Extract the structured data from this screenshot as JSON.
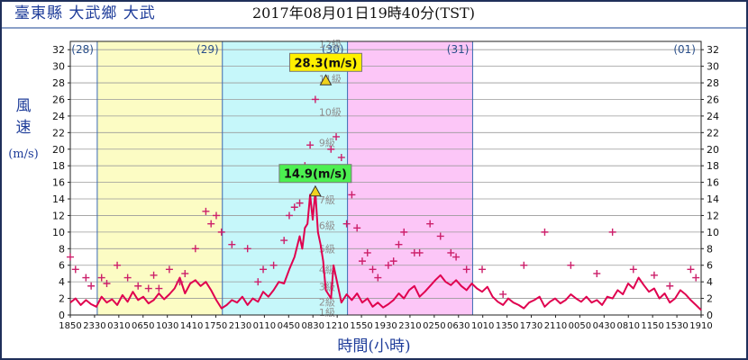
{
  "header": {
    "station": "臺東縣 大武鄉 大武",
    "datetime": "2017年08月01日19時40分(TST)"
  },
  "chart_data": {
    "type": "line",
    "ylabel_chars": [
      "風",
      "速"
    ],
    "ylabel_unit": "(m/s)",
    "xlabel": "時間(小時)",
    "ylim": [
      0,
      33
    ],
    "yticks": [
      0,
      2,
      4,
      6,
      8,
      10,
      12,
      14,
      16,
      18,
      20,
      22,
      24,
      26,
      28,
      30,
      32
    ],
    "x_hours": [
      0,
      121
    ],
    "xticks": [
      "1850",
      "2330",
      "0310",
      "0650",
      "1030",
      "1410",
      "1750",
      "2130",
      "0110",
      "0450",
      "0830",
      "1210",
      "1550",
      "1930",
      "2310",
      "0250",
      "0630",
      "1010",
      "1350",
      "1730",
      "2110",
      "0050",
      "0430",
      "0810",
      "1150",
      "1530",
      "1910"
    ],
    "days": [
      {
        "label": "(28)",
        "start": 0,
        "end": 5.17,
        "color": "#ffffff"
      },
      {
        "label": "(29)",
        "start": 5.17,
        "end": 29.17,
        "color": "#fcfcc4"
      },
      {
        "label": "(30)",
        "start": 29.17,
        "end": 53.17,
        "color": "#c6f7fa"
      },
      {
        "label": "(31)",
        "start": 53.17,
        "end": 77.17,
        "color": "#fcc6f7"
      },
      {
        "label": "(01)",
        "start": 77.17,
        "end": 121,
        "color": "#ffffff"
      }
    ],
    "beaufort": [
      {
        "label": "1級",
        "v": 0.3
      },
      {
        "label": "2級",
        "v": 1.6
      },
      {
        "label": "3級",
        "v": 3.4
      },
      {
        "label": "4級",
        "v": 5.5
      },
      {
        "label": "5級",
        "v": 8.0
      },
      {
        "label": "6級",
        "v": 10.8
      },
      {
        "label": "7級",
        "v": 13.9
      },
      {
        "label": "8級",
        "v": 17.2
      },
      {
        "label": "9級",
        "v": 20.8
      },
      {
        "label": "10級",
        "v": 24.5
      },
      {
        "label": "11級",
        "v": 28.5
      },
      {
        "label": "12級",
        "v": 32.7
      }
    ],
    "series": [
      {
        "role": "mean",
        "color": "#e0004f",
        "x": [
          0,
          1,
          2,
          3,
          4,
          5,
          6,
          7,
          8,
          9,
          10,
          11,
          12,
          13,
          14,
          15,
          16,
          17,
          18,
          19,
          20,
          21,
          22,
          23,
          24,
          25,
          26,
          27,
          28,
          29,
          30,
          31,
          32,
          33,
          34,
          35,
          36,
          37,
          38,
          39,
          40,
          41,
          42,
          43,
          44,
          44.5,
          45,
          45.5,
          46,
          46.5,
          47,
          47.5,
          48,
          48.5,
          49,
          50,
          50.5,
          51,
          52,
          53,
          54,
          55,
          56,
          57,
          58,
          59,
          60,
          61,
          62,
          63,
          64,
          65,
          66,
          67,
          68,
          69,
          70,
          71,
          72,
          73,
          74,
          75,
          76,
          77,
          78,
          79,
          80,
          81,
          82,
          83,
          84,
          85,
          86,
          87,
          88,
          89,
          90,
          91,
          92,
          93,
          94,
          95,
          96,
          97,
          98,
          99,
          100,
          101,
          102,
          103,
          104,
          105,
          106,
          107,
          108,
          109,
          110,
          111,
          112,
          113,
          114,
          115,
          116,
          117,
          118,
          119,
          120,
          121
        ],
        "values": [
          1.5,
          2.0,
          1.2,
          1.8,
          1.3,
          1.0,
          2.2,
          1.5,
          1.9,
          1.2,
          2.4,
          1.6,
          2.8,
          1.8,
          2.2,
          1.4,
          1.8,
          2.6,
          1.9,
          2.5,
          3.2,
          4.5,
          2.6,
          3.8,
          4.2,
          3.5,
          4.0,
          3.0,
          1.8,
          0.8,
          1.2,
          1.8,
          1.5,
          2.2,
          1.2,
          2.0,
          1.6,
          2.8,
          2.2,
          3.0,
          4.0,
          3.8,
          5.5,
          7.0,
          9.5,
          8.0,
          10.5,
          11.0,
          14.5,
          11.5,
          14.9,
          10.0,
          8.5,
          6.5,
          3.0,
          2.0,
          6.0,
          4.5,
          1.5,
          2.5,
          1.8,
          2.6,
          1.5,
          2.0,
          1.0,
          1.5,
          0.9,
          1.3,
          1.8,
          2.6,
          2.0,
          3.0,
          3.5,
          2.2,
          2.8,
          3.5,
          4.2,
          4.8,
          4.0,
          3.6,
          4.2,
          3.5,
          3.0,
          3.8,
          3.2,
          2.8,
          3.4,
          2.2,
          1.6,
          1.2,
          2.0,
          1.5,
          1.2,
          0.8,
          1.5,
          1.8,
          2.2,
          1.0,
          1.6,
          2.0,
          1.4,
          1.8,
          2.5,
          2.0,
          1.6,
          2.2,
          1.5,
          1.8,
          1.2,
          2.2,
          2.0,
          3.0,
          2.5,
          3.8,
          3.2,
          4.5,
          3.6,
          2.8,
          3.2,
          2.0,
          2.6,
          1.5,
          2.0,
          3.0,
          2.5,
          1.8,
          1.2,
          0.6
        ]
      },
      {
        "role": "gust",
        "color": "#cc1f6a",
        "x": [
          0,
          1,
          3,
          4,
          6,
          7,
          9,
          11,
          13,
          15,
          16,
          17,
          19,
          21,
          22,
          24,
          26,
          27,
          28,
          29,
          31,
          34,
          36,
          37,
          39,
          41,
          42,
          43,
          44,
          45,
          46,
          47,
          48,
          49,
          50,
          51,
          52,
          53,
          54,
          55,
          56,
          57,
          58,
          59,
          61,
          62,
          63,
          64,
          66,
          67,
          69,
          71,
          73,
          74,
          76,
          79,
          83,
          87,
          91,
          96,
          101,
          104,
          108,
          112,
          115,
          119,
          120
        ],
        "values": [
          7.0,
          5.5,
          4.5,
          3.5,
          4.5,
          3.8,
          6.0,
          4.5,
          3.5,
          3.2,
          4.8,
          3.2,
          5.5,
          4.0,
          5.0,
          8.0,
          12.5,
          11.0,
          12.0,
          10.0,
          8.5,
          8.0,
          4.0,
          5.5,
          6.0,
          9.0,
          12.0,
          13.0,
          13.5,
          18.0,
          20.5,
          26.0,
          17.5,
          28.3,
          20.0,
          21.5,
          19.0,
          11.0,
          14.5,
          10.5,
          6.5,
          7.5,
          5.5,
          4.5,
          6.0,
          6.5,
          8.5,
          10.0,
          7.5,
          7.5,
          11.0,
          9.5,
          7.5,
          7.0,
          5.5,
          5.5,
          2.5,
          6.0,
          10.0,
          6.0,
          5.0,
          10.0,
          5.5,
          4.8,
          3.5,
          5.5,
          4.5
        ]
      }
    ],
    "annotations": [
      {
        "label": "28.3(m/s)",
        "x": 49,
        "y": 28.3,
        "kind": "gust-max",
        "color": "#fff000"
      },
      {
        "label": "14.9(m/s)",
        "x": 47,
        "y": 14.9,
        "kind": "mean-max",
        "color": "#4cf050"
      }
    ]
  }
}
